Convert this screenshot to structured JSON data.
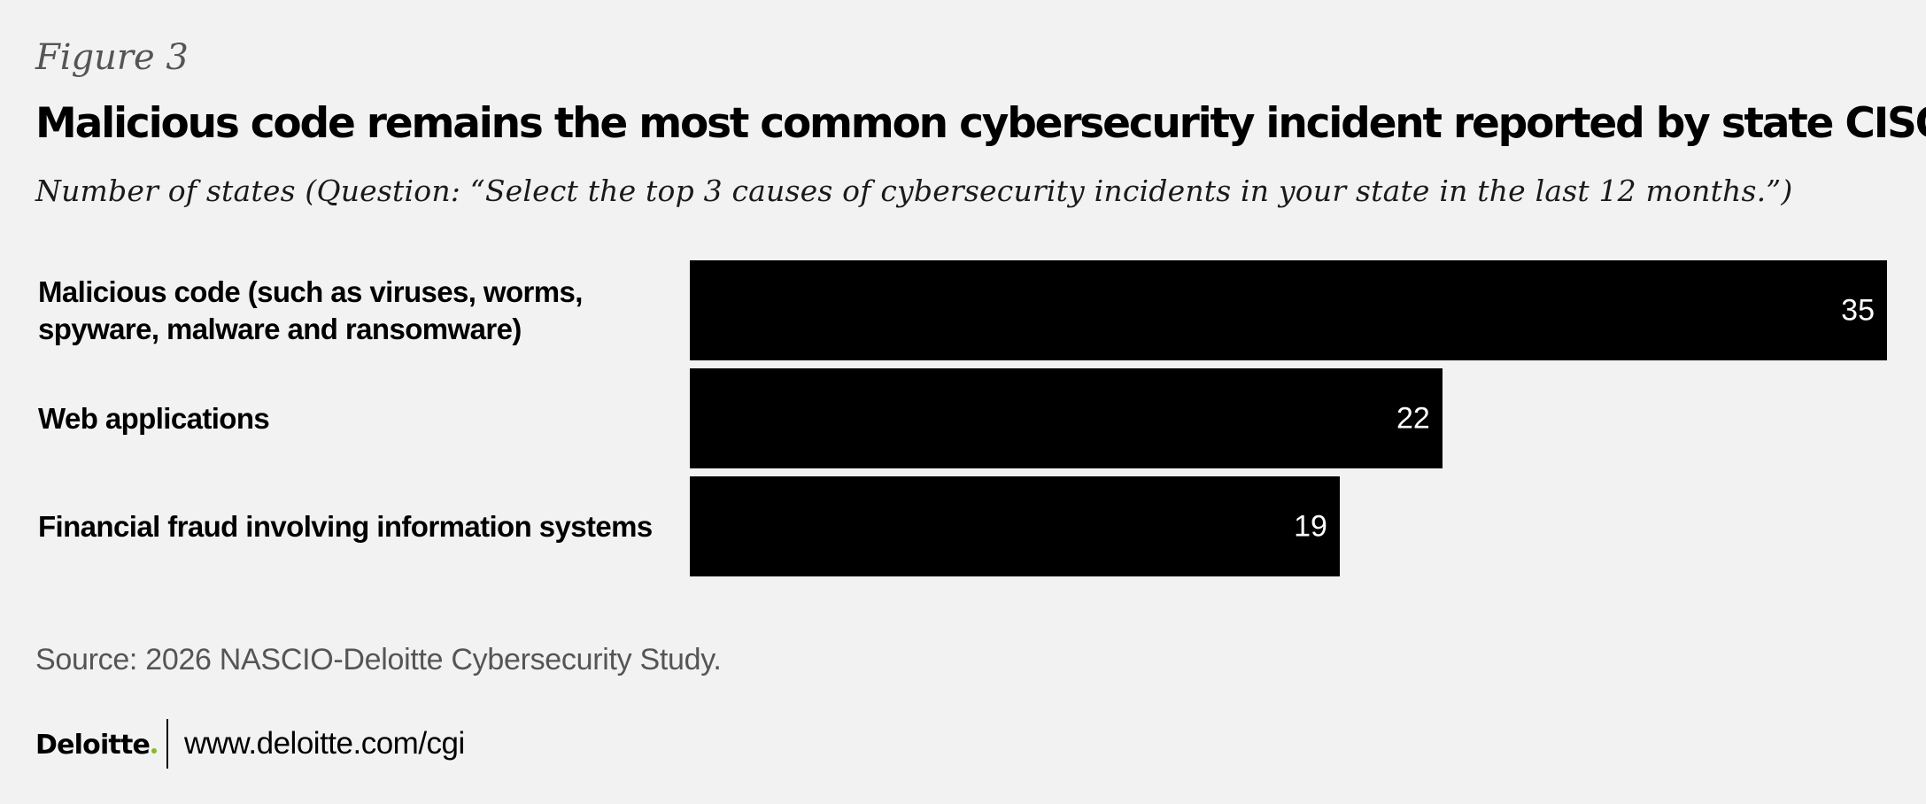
{
  "figure_label": "Figure 3",
  "title": "Malicious code remains the most common cybersecurity incident reported by state CISOs",
  "subtitle": "Number of states (Question: “Select the top 3 causes of cybersecurity incidents in your state in the last 12 months.”)",
  "chart_data": {
    "type": "bar",
    "orientation": "horizontal",
    "title": "Malicious code remains the most common cybersecurity incident reported by state CISOs",
    "subtitle": "Number of states (Question: “Select the top 3 causes of cybersecurity incidents in your state in the last 12 months.”)",
    "categories": [
      "Malicious code (such as viruses, worms, spyware, malware and ransomware)",
      "Web applications",
      "Financial fraud involving information systems"
    ],
    "values": [
      35,
      22,
      19
    ],
    "data_labels": [
      "35",
      "22",
      "19"
    ],
    "xlabel": "",
    "ylabel": "",
    "xlim": [
      0,
      35
    ],
    "grid": false,
    "legend": "none",
    "bar_color": "#000000",
    "label_color": "#ffffff"
  },
  "source": "Source: 2026 NASCIO-Deloitte Cybersecurity Study.",
  "footer": {
    "brand": "Deloitte",
    "brand_dot": ".",
    "brand_dot_color": "#86bc25",
    "url": "www.deloitte.com/cgi"
  },
  "colors": {
    "background": "#f1f2f1",
    "text": "#000000",
    "muted_text": "#555555"
  }
}
